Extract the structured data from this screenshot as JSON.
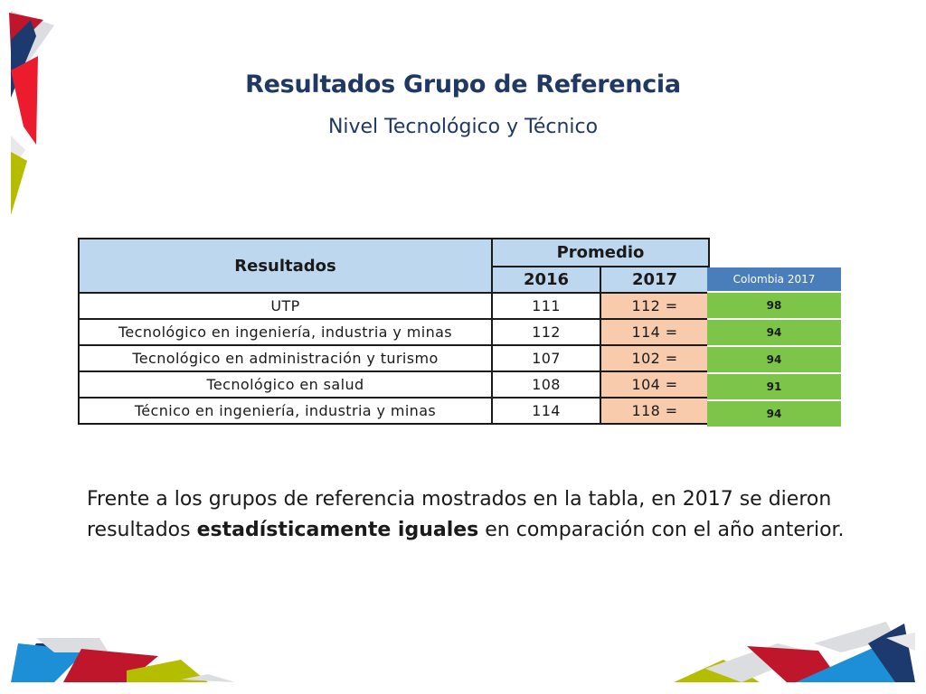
{
  "slide": {
    "title": "Resultados Grupo de Referencia",
    "subtitle": "Nivel Tecnológico y Técnico"
  },
  "table": {
    "header_results": "Resultados",
    "header_promedio": "Promedio",
    "header_years": [
      "2016",
      "2017"
    ],
    "rows": [
      {
        "label": "UTP",
        "v2016": "111",
        "v2017": "112 ="
      },
      {
        "label": "Tecnológico en ingeniería, industria y minas",
        "v2016": "112",
        "v2017": "114 ="
      },
      {
        "label": "Tecnológico en administración y turismo",
        "v2016": "107",
        "v2017": "102 ="
      },
      {
        "label": "Tecnológico en salud",
        "v2016": "108",
        "v2017": "104 ="
      },
      {
        "label": "Técnico en ingeniería, industria y minas",
        "v2016": "114",
        "v2017": "118 ="
      }
    ]
  },
  "colombia": {
    "header": "Colombia 2017",
    "values": [
      "98",
      "94",
      "94",
      "91",
      "94"
    ]
  },
  "conclusion": {
    "before": "Frente a los grupos de referencia mostrados en la tabla, en 2017 se dieron resultados ",
    "bold": "estadísticamente iguales",
    "after": " en comparación con el año anterior."
  },
  "colors": {
    "title": "#1f3864",
    "table_header": "#bdd7ee",
    "highlight_2017": "#f8cbad",
    "colombia_header": "#4a7ebb",
    "colombia_cells": "#7dc548",
    "accent_red": "#c0162c",
    "accent_blue": "#1c8fd6",
    "accent_olive": "#b5bd00",
    "accent_navy": "#1d3a6e"
  }
}
